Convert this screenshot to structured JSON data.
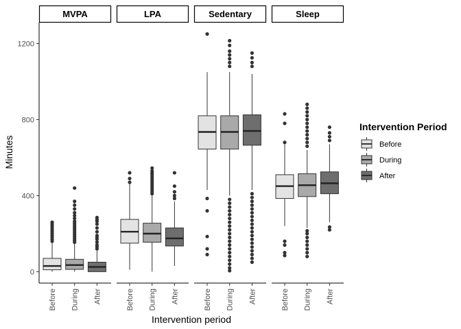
{
  "chart_data": {
    "type": "boxplot",
    "facets": [
      "MVPA",
      "LPA",
      "Sedentary",
      "Sleep"
    ],
    "categories": [
      "Before",
      "During",
      "After"
    ],
    "ylabel": "Minutes",
    "xlabel": "Intervention period",
    "legend_title": "Intervention Period",
    "legend_position": "right",
    "ylim": [
      -60,
      1310
    ],
    "yticks": [
      0,
      400,
      800,
      1200
    ],
    "grid": false,
    "colors": {
      "Before": "#e3e3e3",
      "During": "#a9a9a9",
      "After": "#6e6e6e"
    },
    "boxes": [
      {
        "facet": "MVPA",
        "group": "Before",
        "whisker_low": 0,
        "q1": 10,
        "median": 30,
        "q3": 70,
        "whisker_high": 150,
        "outliers": [
          160,
          170,
          180,
          190,
          200,
          210,
          220,
          230,
          240,
          250,
          260
        ]
      },
      {
        "facet": "MVPA",
        "group": "During",
        "whisker_low": 0,
        "q1": 12,
        "median": 35,
        "q3": 65,
        "whisker_high": 150,
        "outliers": [
          155,
          165,
          175,
          185,
          195,
          205,
          215,
          225,
          235,
          245,
          255,
          265,
          280,
          295,
          310,
          330,
          350,
          370,
          440
        ]
      },
      {
        "facet": "MVPA",
        "group": "After",
        "whisker_low": 0,
        "q1": 0,
        "median": 25,
        "q3": 50,
        "whisker_high": 110,
        "outliers": [
          120,
          130,
          140,
          155,
          170,
          180,
          190,
          210,
          230,
          250,
          265,
          275,
          285
        ]
      },
      {
        "facet": "LPA",
        "group": "Before",
        "whisker_low": 10,
        "q1": 150,
        "median": 210,
        "q3": 275,
        "whisker_high": 460,
        "outliers": [
          470,
          490,
          520
        ]
      },
      {
        "facet": "LPA",
        "group": "During",
        "whisker_low": 0,
        "q1": 155,
        "median": 200,
        "q3": 255,
        "whisker_high": 400,
        "outliers": [
          410,
          420,
          430,
          440,
          450,
          460,
          470,
          480,
          490,
          500,
          510,
          520,
          530,
          545
        ]
      },
      {
        "facet": "LPA",
        "group": "After",
        "whisker_low": 30,
        "q1": 135,
        "median": 175,
        "q3": 230,
        "whisker_high": 370,
        "outliers": [
          385,
          400,
          420,
          450,
          520
        ]
      },
      {
        "facet": "Sedentary",
        "group": "Before",
        "whisker_low": 430,
        "q1": 645,
        "median": 735,
        "q3": 820,
        "whisker_high": 1050,
        "outliers": [
          90,
          120,
          185,
          320,
          385,
          1250
        ]
      },
      {
        "facet": "Sedentary",
        "group": "During",
        "whisker_low": 400,
        "q1": 645,
        "median": 735,
        "q3": 820,
        "whisker_high": 1050,
        "outliers": [
          5,
          20,
          40,
          60,
          80,
          100,
          120,
          140,
          160,
          180,
          200,
          220,
          240,
          260,
          280,
          300,
          320,
          340,
          360,
          380,
          1080,
          1100,
          1120,
          1140,
          1160,
          1190,
          1215
        ]
      },
      {
        "facet": "Sedentary",
        "group": "After",
        "whisker_low": 430,
        "q1": 665,
        "median": 740,
        "q3": 825,
        "whisker_high": 1040,
        "outliers": [
          50,
          70,
          90,
          110,
          130,
          150,
          170,
          190,
          210,
          230,
          250,
          270,
          290,
          310,
          330,
          350,
          370,
          390,
          410,
          1080,
          1100,
          1125,
          1150
        ]
      },
      {
        "facet": "Sleep",
        "group": "Before",
        "whisker_low": 240,
        "q1": 385,
        "median": 450,
        "q3": 510,
        "whisker_high": 670,
        "outliers": [
          85,
          100,
          140,
          160,
          680,
          780,
          830
        ]
      },
      {
        "facet": "Sleep",
        "group": "During",
        "whisker_low": 230,
        "q1": 395,
        "median": 455,
        "q3": 515,
        "whisker_high": 640,
        "outliers": [
          80,
          100,
          120,
          140,
          160,
          180,
          200,
          215,
          660,
          680,
          700,
          720,
          740,
          760,
          780,
          800,
          820,
          840,
          860,
          880
        ]
      },
      {
        "facet": "Sleep",
        "group": "After",
        "whisker_low": 260,
        "q1": 410,
        "median": 465,
        "q3": 525,
        "whisker_high": 670,
        "outliers": [
          220,
          235,
          690,
          710,
          730,
          760
        ]
      }
    ]
  }
}
